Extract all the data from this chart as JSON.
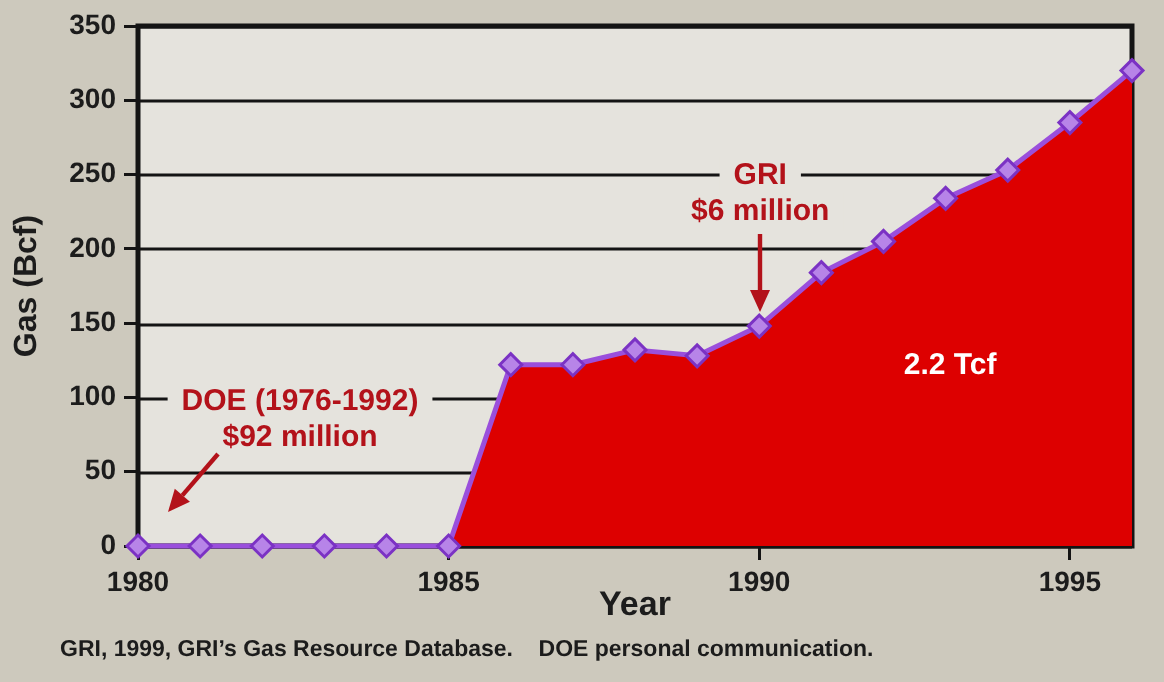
{
  "chart_data": {
    "type": "area",
    "xlabel": "Year",
    "ylabel": "Gas (Bcf)",
    "x": [
      1980,
      1981,
      1982,
      1983,
      1984,
      1985,
      1986,
      1987,
      1988,
      1989,
      1990,
      1991,
      1992,
      1993,
      1994,
      1995,
      1996
    ],
    "values": [
      0,
      0,
      0,
      0,
      0,
      0,
      122,
      122,
      132,
      128,
      148,
      184,
      205,
      234,
      253,
      285,
      320
    ],
    "color": "#dd0000",
    "xlim": [
      1980,
      1996
    ],
    "xticks": [
      1980,
      1985,
      1990,
      1995
    ],
    "ylim": [
      0,
      350
    ],
    "yticks": [
      0,
      50,
      100,
      150,
      200,
      250,
      300,
      350
    ],
    "grid": "y",
    "marker": "diamond",
    "line_style": "solid",
    "annotations": [
      "DOE (1976-1992)\n$92 million",
      "GRI\n$6 million",
      "2.2 Tcf",
      "GRI, 1999, GRI’s Gas Resource Database.    DOE personal communication."
    ]
  }
}
